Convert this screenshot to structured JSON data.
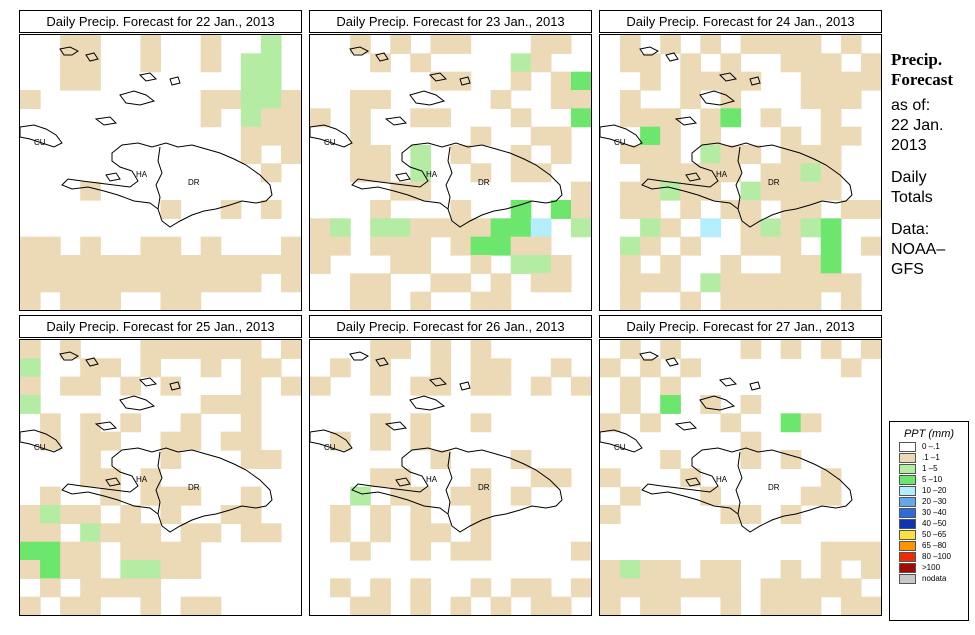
{
  "map_region": "Hispaniola",
  "country_labels": [
    "CU",
    "HA",
    "DR"
  ],
  "panels": [
    {
      "title": "Daily Precip. Forecast for  22 Jan., 2013"
    },
    {
      "title": "Daily Precip. Forecast for  23 Jan., 2013"
    },
    {
      "title": "Daily Precip. Forecast for  24 Jan., 2013"
    },
    {
      "title": "Daily Precip. Forecast for  25 Jan., 2013"
    },
    {
      "title": "Daily Precip. Forecast for  26 Jan., 2013"
    },
    {
      "title": "Daily Precip. Forecast for  27 Jan., 2013"
    }
  ],
  "side_text": {
    "title_line1": "Precip.",
    "title_line2": "Forecast",
    "asof_line1": "as of:",
    "asof_line2": "22 Jan.",
    "asof_line3": "2013",
    "type_line1": "Daily",
    "type_line2": "Totals",
    "source_line1": "Data:",
    "source_line2": "NOAA–",
    "source_line3": "GFS"
  },
  "legend": {
    "title": "PPT (mm)",
    "items": [
      {
        "label": "0 –.1",
        "color": "#ffffff"
      },
      {
        "label": ".1 –1",
        "color": "#ecd9b5"
      },
      {
        "label": "1 –5",
        "color": "#b4eca4"
      },
      {
        "label": "5 –10",
        "color": "#6ce66c"
      },
      {
        "label": "10 –20",
        "color": "#b4eefa"
      },
      {
        "label": "20 –30",
        "color": "#64a8ec"
      },
      {
        "label": "30 –40",
        "color": "#2c6cdc"
      },
      {
        "label": "40 –50",
        "color": "#0c34b4"
      },
      {
        "label": "50 –65",
        "color": "#fce040"
      },
      {
        "label": "65 –80",
        "color": "#fc9404"
      },
      {
        "label": "80 –100",
        "color": "#ec2c04"
      },
      {
        "label": ">100",
        "color": "#a00c04"
      },
      {
        "label": "nodata",
        "color": "#c8c8c8"
      }
    ]
  },
  "rain_grid_cols": 14,
  "rain_grids": [
    "..11..1..1..2.,..11..1..1.22.,..11.......22.,1........11221,.........1.211,...........111,...........1.1,............1.,...1...........,.......1..1.1.,...............,11.1..11.1...11,11111111111111,111111111111.1,1.111..11.....",
    "..1.1.11...11.,...1.1....21.,......11..1.14,..11.....1..11.,1.1..11...1..4,..1.....1..11.,..11.2.1..1.1.,..11.2..1.11..,....11.......1,...1...1..4.41,12.221111445.2,11.111.14411.,1...11..1.221,..11..11.1.11.,..11.1..11....",
    ".1.1.1.1111.1.,.11.1.1..111.1,..1.1111..1111,.1..1.1...111.,.111.14.1..1..,..41.1...1.11.,.111.211.111..,..11111.1121..,.11211.21111..,.11.1.11.11.11,..21.5.12124..,.21.1..111.4.1,.1.1..1..114.,.111.21111111.,.1..1.11111.1.",
    "1.1...111111.1,2..11.1..1.11.,1.11.1.1...1.1,2........111..,.1.1.1..1..1..,.1.11..11.11..,...1...1...11.,...11.1.......,.1..1.111..1..,1211.1.1..11..,11.2111.11.11.,4411.1111.....,1411.2211.....,.1.1111.......,1.11..1.11....",
    "...11.1.1.....,.1.1..1.11..1.,1..1.11.11.1.1,..............,...1.1..1....,.1.1.1.........,......1...1...,...11...1..11.,..2.11.11.1..,.1.1.1..1.....,.1.1.11.1.....,..1..1.11....1,...............,.1.1.1..1.11.1,..11.1.1.1.11.",
    ".1.1...1.1.1.1,1.1.1.......1,.1.1..........,.1.4.1.1......,1.1...1..41...,.......1.......,...1...1.1....,1...1......1..,.1...1....11..,1.....11.1....,..............,...........111,1211.11..1.1.1,1111111.11111.,1.11..1.111.11"
  ]
}
